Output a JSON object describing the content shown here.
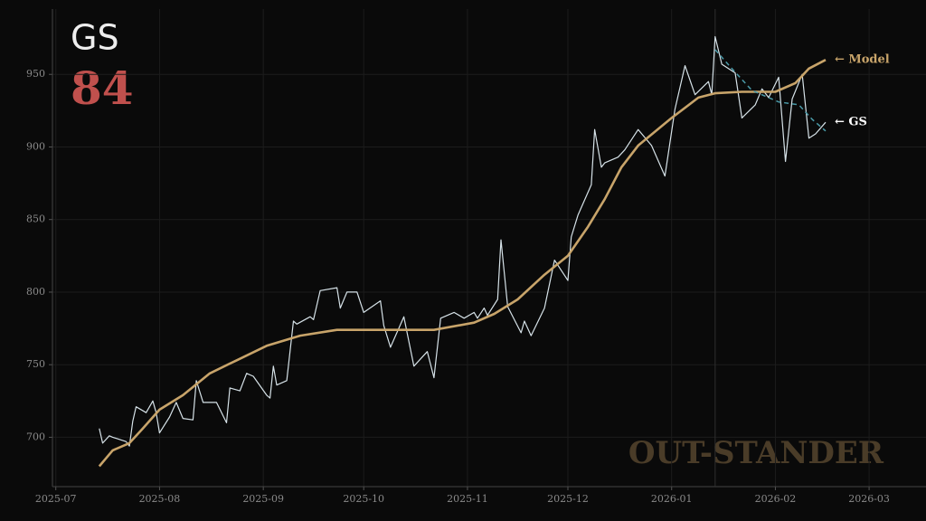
{
  "chart_data": {
    "type": "line",
    "title": "GS",
    "score": "84",
    "watermark": "OUT-STANDER",
    "xlim": [
      "2025-06-30",
      "2026-03-18"
    ],
    "xticks": [
      {
        "value": "2025-07-01",
        "label": "2025-07"
      },
      {
        "value": "2025-08-01",
        "label": "2025-08"
      },
      {
        "value": "2025-09-01",
        "label": "2025-09"
      },
      {
        "value": "2025-10-01",
        "label": "2025-10"
      },
      {
        "value": "2025-11-01",
        "label": "2025-11"
      },
      {
        "value": "2025-12-01",
        "label": "2025-12"
      },
      {
        "value": "2026-01-01",
        "label": "2026-01"
      },
      {
        "value": "2026-02-01",
        "label": "2026-02"
      },
      {
        "value": "2026-03-01",
        "label": "2026-03"
      }
    ],
    "ylim": [
      666,
      995
    ],
    "yticks": [
      700,
      750,
      800,
      850,
      900,
      950
    ],
    "grid": true,
    "vline": "2026-01-14",
    "series": [
      {
        "end_label": "← GS",
        "color": "#d6e2e8",
        "width": 1.2,
        "dash": false,
        "x": [
          "2025-07-14",
          "2025-07-15",
          "2025-07-17",
          "2025-07-18",
          "2025-07-22",
          "2025-07-23",
          "2025-07-24",
          "2025-07-25",
          "2025-07-28",
          "2025-07-30",
          "2025-07-31",
          "2025-08-01",
          "2025-08-04",
          "2025-08-06",
          "2025-08-08",
          "2025-08-11",
          "2025-08-12",
          "2025-08-14",
          "2025-08-18",
          "2025-08-21",
          "2025-08-22",
          "2025-08-25",
          "2025-08-27",
          "2025-08-29",
          "2025-09-02",
          "2025-09-03",
          "2025-09-04",
          "2025-09-05",
          "2025-09-08",
          "2025-09-10",
          "2025-09-11",
          "2025-09-15",
          "2025-09-16",
          "2025-09-18",
          "2025-09-23",
          "2025-09-24",
          "2025-09-26",
          "2025-09-29",
          "2025-10-01",
          "2025-10-06",
          "2025-10-07",
          "2025-10-09",
          "2025-10-13",
          "2025-10-16",
          "2025-10-20",
          "2025-10-22",
          "2025-10-24",
          "2025-10-28",
          "2025-10-31",
          "2025-11-03",
          "2025-11-04",
          "2025-11-06",
          "2025-11-07",
          "2025-11-10",
          "2025-11-11",
          "2025-11-13",
          "2025-11-17",
          "2025-11-18",
          "2025-11-20",
          "2025-11-24",
          "2025-11-27",
          "2025-12-01",
          "2025-12-02",
          "2025-12-04",
          "2025-12-08",
          "2025-12-09",
          "2025-12-11",
          "2025-12-12",
          "2025-12-16",
          "2025-12-18",
          "2025-12-22",
          "2025-12-26",
          "2025-12-30",
          "2026-01-02",
          "2026-01-05",
          "2026-01-08",
          "2026-01-12",
          "2026-01-13",
          "2026-01-14",
          "2026-01-16",
          "2026-01-20",
          "2026-01-22",
          "2026-01-26",
          "2026-01-28",
          "2026-01-30",
          "2026-02-02",
          "2026-02-04",
          "2026-02-06",
          "2026-02-09",
          "2026-02-11",
          "2026-02-13",
          "2026-02-16"
        ],
        "values": [
          706,
          696,
          701,
          700,
          697,
          694,
          711,
          721,
          717,
          725,
          717,
          703,
          714,
          724,
          713,
          712,
          739,
          724,
          724,
          710,
          734,
          732,
          744,
          742,
          729,
          727,
          749,
          736,
          739,
          780,
          778,
          783,
          781,
          801,
          803,
          789,
          800,
          800,
          786,
          794,
          777,
          762,
          783,
          749,
          759,
          741,
          782,
          786,
          782,
          786,
          782,
          789,
          784,
          795,
          836,
          790,
          772,
          780,
          770,
          789,
          822,
          808,
          838,
          853,
          874,
          912,
          886,
          889,
          893,
          898,
          912,
          901,
          880,
          926,
          956,
          936,
          945,
          936,
          976,
          957,
          951,
          920,
          929,
          940,
          934,
          948,
          890,
          933,
          950,
          906,
          909,
          917
        ]
      },
      {
        "end_label": "← Model",
        "color": "#c8a46a",
        "width": 2.6,
        "dash": false,
        "x": [
          "2025-07-14",
          "2025-07-18",
          "2025-07-23",
          "2025-07-27",
          "2025-08-01",
          "2025-08-08",
          "2025-08-16",
          "2025-08-24",
          "2025-09-02",
          "2025-09-12",
          "2025-09-23",
          "2025-10-01",
          "2025-10-11",
          "2025-10-22",
          "2025-11-03",
          "2025-11-09",
          "2025-11-16",
          "2025-11-24",
          "2025-12-01",
          "2025-12-07",
          "2025-12-12",
          "2025-12-17",
          "2025-12-22",
          "2026-01-01",
          "2026-01-09",
          "2026-01-14",
          "2026-01-22",
          "2026-02-01",
          "2026-02-07",
          "2026-02-11",
          "2026-02-16"
        ],
        "values": [
          680,
          691,
          696,
          706,
          719,
          729,
          744,
          753,
          763,
          770,
          774,
          774,
          774,
          774,
          779,
          785,
          795,
          812,
          825,
          845,
          864,
          886,
          901,
          920,
          934,
          937,
          938,
          938,
          944,
          954,
          960
        ]
      },
      {
        "color": "#4a9aa8",
        "width": 1.5,
        "dash": true,
        "x": [
          "2026-01-14",
          "2026-01-19",
          "2026-01-25",
          "2026-02-02",
          "2026-02-08",
          "2026-02-12",
          "2026-02-16"
        ],
        "values": [
          967,
          954,
          939,
          931,
          929,
          919,
          911
        ]
      }
    ]
  }
}
